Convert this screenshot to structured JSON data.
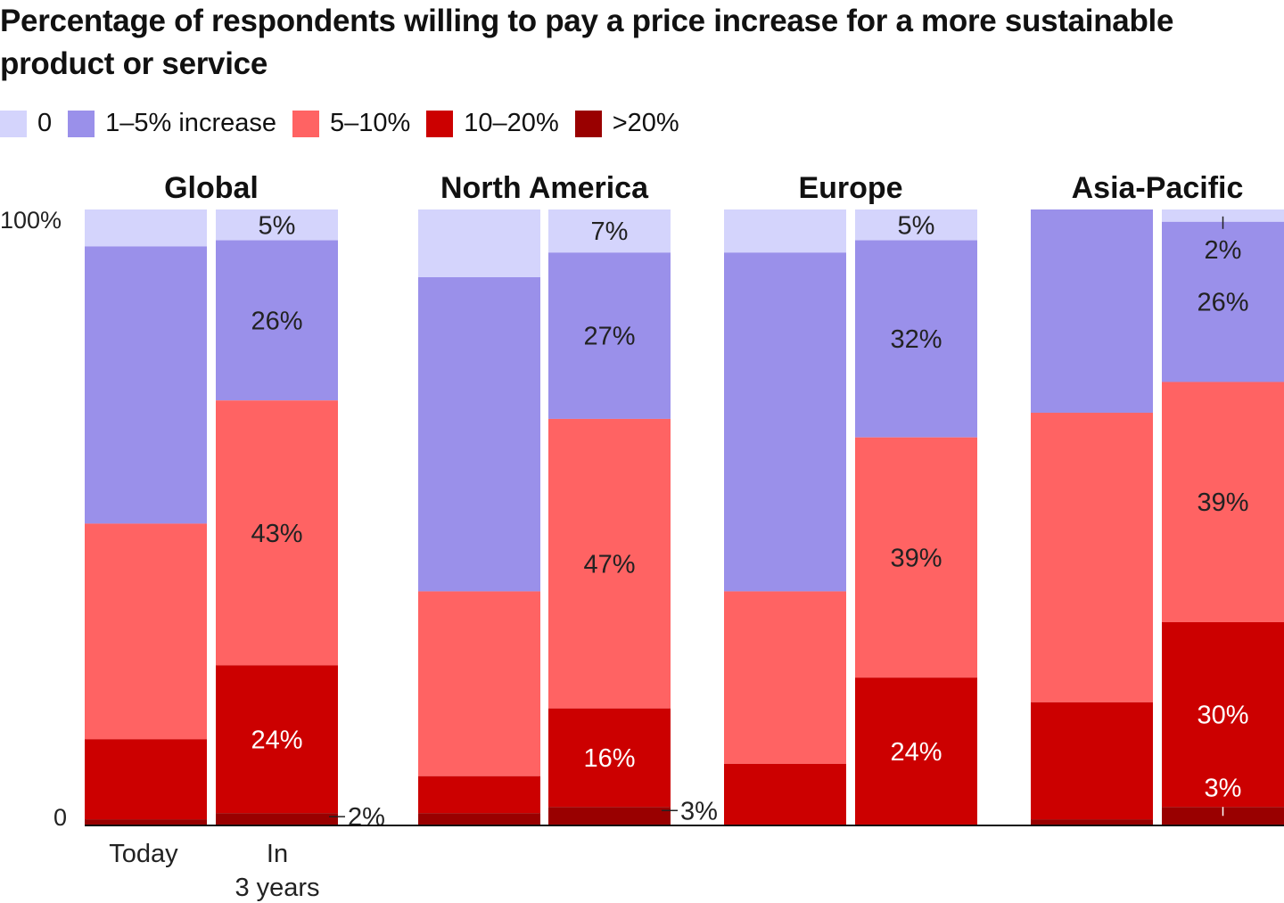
{
  "chart_data": {
    "type": "bar",
    "stacked": true,
    "title": "Percentage of respondents willing to pay a price increase for a more sustainable product or service",
    "legend": [
      {
        "name": "0",
        "color": "#d4d4fc"
      },
      {
        "name": "1–5% increase",
        "color": "#9a90ea"
      },
      {
        "name": "5–10%",
        "color": "#ff6363"
      },
      {
        "name": "10–20%",
        "color": "#cc0000"
      },
      {
        "name": ">20%",
        "color": "#990000"
      }
    ],
    "legend_placement": "top-left",
    "ylim": [
      0,
      100
    ],
    "yticks": [
      "100%",
      "0"
    ],
    "categories": [
      "Today",
      "In 3 years"
    ],
    "category_labels": {
      "today": "Today",
      "future_line1": "In",
      "future_line2": "3 years"
    },
    "panels": [
      {
        "name": "Global",
        "bars": [
          {
            "category": "Today",
            "values": [
              6,
              45,
              35,
              13,
              1
            ],
            "labels": [
              null,
              null,
              null,
              null,
              null
            ]
          },
          {
            "category": "In 3 years",
            "values": [
              5,
              26,
              43,
              24,
              2
            ],
            "labels": [
              "5%",
              "26%",
              "43%",
              "24%",
              "2%"
            ]
          }
        ]
      },
      {
        "name": "North America",
        "bars": [
          {
            "category": "Today",
            "values": [
              11,
              51,
              30,
              6,
              2
            ],
            "labels": [
              null,
              null,
              null,
              null,
              null
            ]
          },
          {
            "category": "In 3 years",
            "values": [
              7,
              27,
              47,
              16,
              3
            ],
            "labels": [
              "7%",
              "27%",
              "47%",
              "16%",
              "3%"
            ]
          }
        ]
      },
      {
        "name": "Europe",
        "bars": [
          {
            "category": "Today",
            "values": [
              7,
              55,
              28,
              10,
              0
            ],
            "labels": [
              null,
              null,
              null,
              null,
              null
            ]
          },
          {
            "category": "In 3 years",
            "values": [
              5,
              32,
              39,
              24,
              0
            ],
            "labels": [
              "5%",
              "32%",
              "39%",
              "24%",
              null
            ]
          }
        ]
      },
      {
        "name": "Asia-Pacific",
        "bars": [
          {
            "category": "Today",
            "values": [
              0,
              33,
              47,
              19,
              1
            ],
            "labels": [
              null,
              null,
              null,
              null,
              null
            ]
          },
          {
            "category": "In 3 years",
            "values": [
              2,
              26,
              39,
              30,
              3
            ],
            "labels": [
              "2%",
              "26%",
              "39%",
              "30%",
              "3%"
            ]
          }
        ]
      }
    ]
  }
}
